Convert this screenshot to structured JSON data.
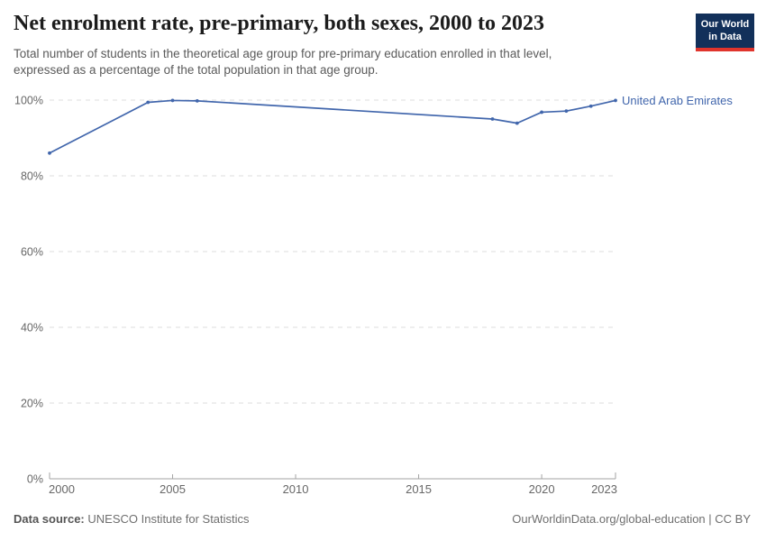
{
  "header": {
    "title": "Net enrolment rate, pre-primary, both sexes, 2000 to 2023",
    "subtitle": "Total number of students in the theoretical age group for pre-primary education enrolled in that level, expressed as a percentage of the total population in that age group.",
    "logo": {
      "line1": "Our World",
      "line2": "in Data"
    }
  },
  "footer": {
    "source_label": "Data source:",
    "source_value": "UNESCO Institute for Statistics",
    "right_text": "OurWorldinData.org/global-education | CC BY"
  },
  "colors": {
    "title": "#1c1c1c",
    "subtitle": "#5a5a5a",
    "tick_label": "#676767",
    "axis": "#a3a3a3",
    "grid": "#dcdcdc",
    "footer": "#6e6e6e",
    "footer_dark": "#555555",
    "logo_bg": "#12305a",
    "logo_red": "#e0342c",
    "line": "#4166ac"
  },
  "chart_data": {
    "type": "line",
    "title": "Net enrolment rate, pre-primary, both sexes, 2000 to 2023",
    "xlabel": "",
    "ylabel": "",
    "x_axis": {
      "min": 2000,
      "max": 2023,
      "ticks": [
        2000,
        2005,
        2010,
        2015,
        2020,
        2023
      ]
    },
    "y_axis": {
      "min": 0,
      "max": 100,
      "ticks": [
        0,
        20,
        40,
        60,
        80,
        100
      ],
      "suffix": "%"
    },
    "grid": "dashed-horizontal",
    "legend_position": "end-of-line-label",
    "series": [
      {
        "name": "United Arab Emirates",
        "color": "#4166ac",
        "points": [
          [
            2000,
            86.0
          ],
          [
            2004,
            99.4
          ],
          [
            2005,
            99.9
          ],
          [
            2006,
            99.8
          ],
          [
            2018,
            95.0
          ],
          [
            2019,
            93.9
          ],
          [
            2020,
            96.8
          ],
          [
            2021,
            97.1
          ],
          [
            2022,
            98.4
          ],
          [
            2023,
            99.9
          ]
        ]
      }
    ]
  }
}
